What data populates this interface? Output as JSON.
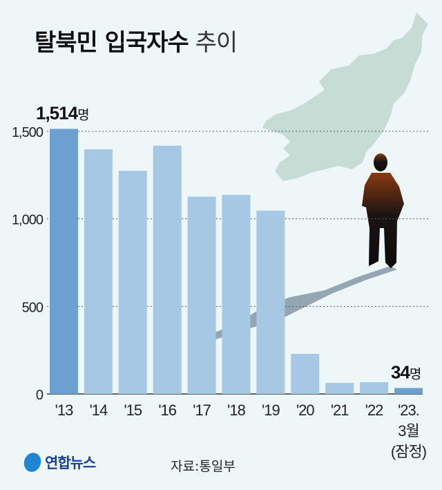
{
  "title": {
    "bold": "탈북민 입국자수",
    "light": "추이"
  },
  "source": "자료:통일부",
  "logo": "연합뉴스",
  "colors": {
    "bar": "#a6c8e4",
    "highlight": "#6d9fd0",
    "background": "#eef6f8"
  },
  "chart_data": {
    "type": "bar",
    "categories": [
      "'13",
      "'14",
      "'15",
      "'16",
      "'17",
      "'18",
      "'19",
      "'20",
      "'21",
      "'22",
      "'23.\n3월\n(잠정)"
    ],
    "values": [
      1514,
      1397,
      1275,
      1418,
      1127,
      1137,
      1047,
      229,
      63,
      67,
      34
    ],
    "highlighted": [
      0,
      10
    ],
    "data_labels": [
      {
        "index": 0,
        "value": "1,514",
        "unit": "명"
      },
      {
        "index": 10,
        "value": "34",
        "unit": "명"
      }
    ],
    "yticks": [
      "0",
      "500",
      "1,000",
      "1,500"
    ],
    "ytick_values": [
      0,
      500,
      1000,
      1500
    ],
    "ylim": [
      0,
      1500
    ],
    "grid": "dotted horizontal",
    "xlabel": "",
    "ylabel": ""
  }
}
